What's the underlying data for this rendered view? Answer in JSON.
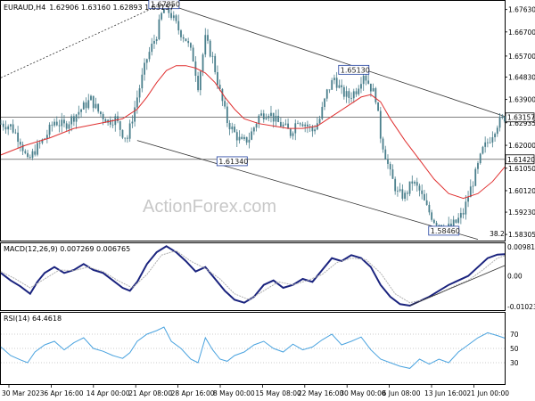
{
  "header": {
    "symbol": "EURAUD,H4",
    "ohlc": "1.62906 1.63160 1.62893 1.63157"
  },
  "watermark": "ActionForex.com",
  "colors": {
    "candle": "#4a7f8c",
    "ma": "#e03030",
    "macd": "#1a237e",
    "signal": "#b0b0b0",
    "rsi": "#4aa3df",
    "trendline": "#333333",
    "label_border": "#2040a0",
    "label_bg": "#ffffff"
  },
  "chart_data": [
    {
      "type": "candlestick",
      "title": "EURAUD,H4",
      "ylim": [
        1.5805,
        1.6795
      ],
      "y_ticks": [
        "1.67630",
        "1.66700",
        "1.65700",
        "1.64830",
        "1.63900",
        "1.62935",
        "1.62000",
        "1.61050",
        "1.60120",
        "1.59230",
        "1.58305"
      ],
      "price_boxes": [
        "1.63157",
        "1.61420"
      ],
      "x_ticks": [
        "30 Mar 2023",
        "6 Apr 16:00",
        "14 Apr 00:00",
        "21 Apr 08:00",
        "28 Apr 16:00",
        "8 May 00:00",
        "15 May 08:00",
        "22 May 16:00",
        "30 May 00:00",
        "6 Jun 08:00",
        "13 Jun 16:00",
        "21 Jun 00:00"
      ],
      "close_path": [
        [
          0,
          1.629
        ],
        [
          4,
          1.628
        ],
        [
          8,
          1.622
        ],
        [
          11,
          1.613
        ],
        [
          14,
          1.618
        ],
        [
          18,
          1.623
        ],
        [
          22,
          1.63
        ],
        [
          26,
          1.628
        ],
        [
          30,
          1.632
        ],
        [
          34,
          1.636
        ],
        [
          37,
          1.639
        ],
        [
          40,
          1.634
        ],
        [
          44,
          1.63
        ],
        [
          47,
          1.631
        ],
        [
          50,
          1.625
        ],
        [
          52,
          1.623
        ],
        [
          56,
          1.64
        ],
        [
          60,
          1.656
        ],
        [
          64,
          1.666
        ],
        [
          67,
          1.678
        ],
        [
          70,
          1.674
        ],
        [
          73,
          1.668
        ],
        [
          76,
          1.664
        ],
        [
          79,
          1.656
        ],
        [
          81,
          1.645
        ],
        [
          84,
          1.664
        ],
        [
          87,
          1.656
        ],
        [
          90,
          1.642
        ],
        [
          93,
          1.63
        ],
        [
          96,
          1.625
        ],
        [
          99,
          1.621
        ],
        [
          102,
          1.623
        ],
        [
          106,
          1.632
        ],
        [
          110,
          1.634
        ],
        [
          113,
          1.63
        ],
        [
          116,
          1.628
        ],
        [
          119,
          1.625
        ],
        [
          122,
          1.631
        ],
        [
          125,
          1.629
        ],
        [
          128,
          1.626
        ],
        [
          131,
          1.631
        ],
        [
          134,
          1.642
        ],
        [
          137,
          1.648
        ],
        [
          140,
          1.642
        ],
        [
          143,
          1.64
        ],
        [
          146,
          1.643
        ],
        [
          149,
          1.65
        ],
        [
          152,
          1.644
        ],
        [
          154,
          1.64
        ],
        [
          156,
          1.624
        ],
        [
          158,
          1.616
        ],
        [
          160,
          1.608
        ],
        [
          163,
          1.6
        ],
        [
          166,
          1.599
        ],
        [
          169,
          1.605
        ],
        [
          172,
          1.601
        ],
        [
          175,
          1.594
        ],
        [
          178,
          1.589
        ],
        [
          181,
          1.587
        ],
        [
          184,
          1.586
        ],
        [
          187,
          1.588
        ],
        [
          190,
          1.592
        ],
        [
          192,
          1.599
        ],
        [
          195,
          1.608
        ],
        [
          198,
          1.618
        ],
        [
          201,
          1.623
        ],
        [
          204,
          1.629
        ],
        [
          207,
          1.6316
        ]
      ],
      "ma_path": [
        [
          0,
          1.616
        ],
        [
          10,
          1.62
        ],
        [
          20,
          1.623
        ],
        [
          30,
          1.627
        ],
        [
          40,
          1.629
        ],
        [
          50,
          1.631
        ],
        [
          56,
          1.635
        ],
        [
          60,
          1.64
        ],
        [
          64,
          1.646
        ],
        [
          68,
          1.651
        ],
        [
          72,
          1.653
        ],
        [
          76,
          1.653
        ],
        [
          80,
          1.652
        ],
        [
          84,
          1.65
        ],
        [
          88,
          1.646
        ],
        [
          92,
          1.64
        ],
        [
          96,
          1.635
        ],
        [
          100,
          1.631
        ],
        [
          106,
          1.629
        ],
        [
          112,
          1.628
        ],
        [
          118,
          1.627
        ],
        [
          124,
          1.627
        ],
        [
          130,
          1.628
        ],
        [
          136,
          1.632
        ],
        [
          142,
          1.636
        ],
        [
          148,
          1.64
        ],
        [
          152,
          1.641
        ],
        [
          156,
          1.638
        ],
        [
          160,
          1.631
        ],
        [
          166,
          1.622
        ],
        [
          172,
          1.614
        ],
        [
          178,
          1.606
        ],
        [
          184,
          1.6
        ],
        [
          190,
          1.598
        ],
        [
          196,
          1.6
        ],
        [
          202,
          1.605
        ],
        [
          207,
          1.611
        ]
      ],
      "trendlines": [
        {
          "from": [
            0,
            1.648
          ],
          "to": [
            67,
            1.679
          ],
          "style": "dotted"
        },
        {
          "from": [
            67,
            1.679
          ],
          "to": [
            207,
            1.632
          ],
          "style": "solid"
        },
        {
          "from": [
            56,
            1.622
          ],
          "to": [
            196,
            1.581
          ],
          "style": "solid"
        },
        {
          "from": [
            0,
            1.6316
          ],
          "to": [
            207,
            1.6316
          ],
          "style": "solid-light"
        },
        {
          "from": [
            0,
            1.6142
          ],
          "to": [
            207,
            1.6142
          ],
          "style": "solid-light"
        }
      ],
      "annotations": [
        {
          "text": "1.67850",
          "x": 67,
          "y": 1.6785
        },
        {
          "text": "1.65130",
          "x": 145,
          "y": 1.6513
        },
        {
          "text": "1.61340",
          "x": 95,
          "y": 1.6134
        },
        {
          "text": "1.58460",
          "x": 182,
          "y": 1.5846
        },
        {
          "text": "38.2",
          "x": 203,
          "y": 1.5835
        }
      ]
    },
    {
      "type": "line",
      "title": "MACD(12,26,9) 0.007269 0.006765",
      "ylim": [
        -0.0115,
        0.011
      ],
      "y_ticks": [
        "0.00981",
        "0.00",
        "-0.010235"
      ],
      "series": [
        {
          "name": "MACD",
          "values": [
            [
              0,
              0.001
            ],
            [
              4,
              -0.0015
            ],
            [
              8,
              -0.0035
            ],
            [
              12,
              -0.006
            ],
            [
              15,
              -0.002
            ],
            [
              18,
              0.001
            ],
            [
              22,
              0.003
            ],
            [
              26,
              0.001
            ],
            [
              30,
              0.002
            ],
            [
              34,
              0.004
            ],
            [
              38,
              0.002
            ],
            [
              42,
              0.001
            ],
            [
              46,
              -0.0015
            ],
            [
              50,
              -0.004
            ],
            [
              53,
              -0.005
            ],
            [
              56,
              -0.002
            ],
            [
              60,
              0.004
            ],
            [
              64,
              0.008
            ],
            [
              68,
              0.01
            ],
            [
              72,
              0.008
            ],
            [
              76,
              0.005
            ],
            [
              80,
              0.0015
            ],
            [
              84,
              0.003
            ],
            [
              88,
              -0.001
            ],
            [
              92,
              -0.005
            ],
            [
              96,
              -0.008
            ],
            [
              100,
              -0.009
            ],
            [
              104,
              -0.007
            ],
            [
              108,
              -0.003
            ],
            [
              112,
              -0.0015
            ],
            [
              116,
              -0.004
            ],
            [
              120,
              -0.003
            ],
            [
              124,
              -0.001
            ],
            [
              128,
              -0.002
            ],
            [
              132,
              0.002
            ],
            [
              136,
              0.006
            ],
            [
              140,
              0.005
            ],
            [
              144,
              0.007
            ],
            [
              148,
              0.006
            ],
            [
              152,
              0.003
            ],
            [
              156,
              -0.003
            ],
            [
              160,
              -0.007
            ],
            [
              164,
              -0.0095
            ],
            [
              168,
              -0.01
            ],
            [
              172,
              -0.0085
            ],
            [
              176,
              -0.007
            ],
            [
              180,
              -0.005
            ],
            [
              184,
              -0.003
            ],
            [
              188,
              -0.0015
            ],
            [
              192,
              0.0
            ],
            [
              196,
              0.003
            ],
            [
              200,
              0.006
            ],
            [
              204,
              0.0072
            ],
            [
              207,
              0.0073
            ]
          ]
        },
        {
          "name": "Signal",
          "values": [
            [
              0,
              0.0015
            ],
            [
              6,
              -0.001
            ],
            [
              12,
              -0.004
            ],
            [
              18,
              -0.001
            ],
            [
              24,
              0.002
            ],
            [
              30,
              0.0018
            ],
            [
              36,
              0.003
            ],
            [
              42,
              0.0015
            ],
            [
              48,
              -0.0015
            ],
            [
              54,
              -0.004
            ],
            [
              60,
              0.0005
            ],
            [
              66,
              0.007
            ],
            [
              72,
              0.0085
            ],
            [
              78,
              0.005
            ],
            [
              84,
              0.0025
            ],
            [
              90,
              -0.001
            ],
            [
              96,
              -0.006
            ],
            [
              102,
              -0.008
            ],
            [
              108,
              -0.005
            ],
            [
              114,
              -0.002
            ],
            [
              120,
              -0.003
            ],
            [
              126,
              -0.0015
            ],
            [
              132,
              0.0005
            ],
            [
              138,
              0.0045
            ],
            [
              144,
              0.006
            ],
            [
              150,
              0.0055
            ],
            [
              156,
              0.001
            ],
            [
              162,
              -0.006
            ],
            [
              168,
              -0.009
            ],
            [
              174,
              -0.008
            ],
            [
              180,
              -0.006
            ],
            [
              186,
              -0.0035
            ],
            [
              192,
              -0.0015
            ],
            [
              198,
              0.002
            ],
            [
              204,
              0.006
            ],
            [
              207,
              0.0068
            ]
          ]
        }
      ],
      "trendline": {
        "from": [
          168,
          -0.01
        ],
        "to": [
          207,
          0.0035
        ]
      }
    },
    {
      "type": "line",
      "title": "RSI(14) 64.4618",
      "ylim": [
        0,
        100
      ],
      "y_ticks": [
        "70",
        "50",
        "30"
      ],
      "series": [
        {
          "name": "RSI",
          "values": [
            [
              0,
              52
            ],
            [
              4,
              40
            ],
            [
              8,
              34
            ],
            [
              11,
              30
            ],
            [
              14,
              45
            ],
            [
              18,
              55
            ],
            [
              22,
              60
            ],
            [
              26,
              48
            ],
            [
              30,
              58
            ],
            [
              34,
              65
            ],
            [
              38,
              50
            ],
            [
              42,
              46
            ],
            [
              46,
              40
            ],
            [
              50,
              36
            ],
            [
              53,
              44
            ],
            [
              56,
              60
            ],
            [
              60,
              70
            ],
            [
              64,
              75
            ],
            [
              67,
              80
            ],
            [
              70,
              60
            ],
            [
              74,
              50
            ],
            [
              78,
              35
            ],
            [
              81,
              30
            ],
            [
              84,
              65
            ],
            [
              87,
              48
            ],
            [
              90,
              35
            ],
            [
              93,
              32
            ],
            [
              96,
              40
            ],
            [
              100,
              45
            ],
            [
              104,
              55
            ],
            [
              108,
              60
            ],
            [
              112,
              50
            ],
            [
              116,
              45
            ],
            [
              120,
              56
            ],
            [
              124,
              48
            ],
            [
              128,
              52
            ],
            [
              132,
              62
            ],
            [
              136,
              70
            ],
            [
              140,
              55
            ],
            [
              144,
              60
            ],
            [
              148,
              66
            ],
            [
              152,
              48
            ],
            [
              156,
              35
            ],
            [
              160,
              30
            ],
            [
              164,
              25
            ],
            [
              168,
              22
            ],
            [
              172,
              35
            ],
            [
              176,
              28
            ],
            [
              180,
              35
            ],
            [
              184,
              30
            ],
            [
              188,
              45
            ],
            [
              192,
              55
            ],
            [
              196,
              65
            ],
            [
              200,
              72
            ],
            [
              204,
              68
            ],
            [
              207,
              64.46
            ]
          ]
        }
      ]
    }
  ]
}
